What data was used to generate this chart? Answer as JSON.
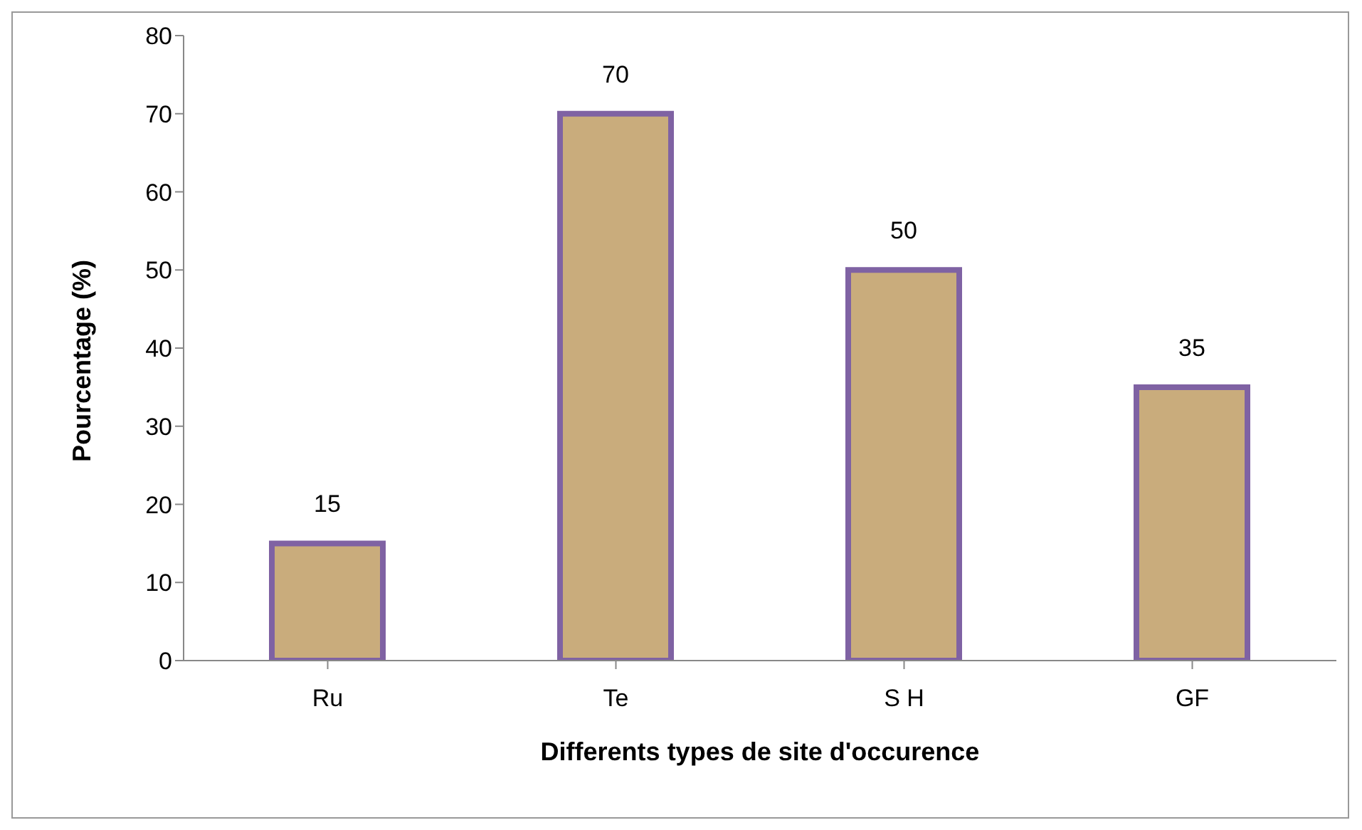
{
  "chart_data": {
    "type": "bar",
    "xlabel": "Differents types de site d'occurence",
    "ylabel": "Pourcentage (%)",
    "categories": [
      "Ru",
      "Te",
      "S H",
      "GF"
    ],
    "values": [
      15,
      70,
      50,
      35
    ],
    "color": "#c9ac7c",
    "ylim": [
      0,
      80
    ],
    "yticks": [
      0,
      10,
      20,
      30,
      40,
      50,
      60,
      70,
      80
    ],
    "grid": false,
    "legend": false,
    "data_labels": true
  }
}
